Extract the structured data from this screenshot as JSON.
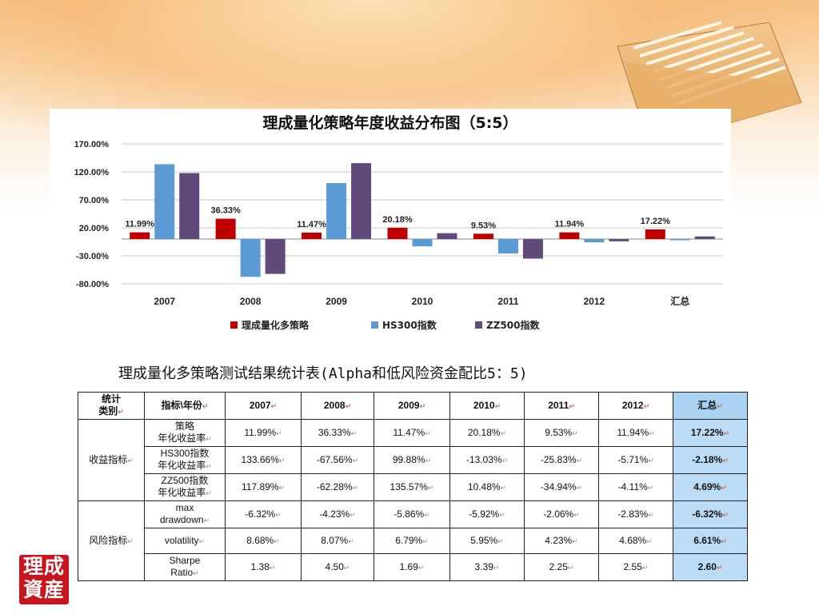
{
  "chart_data": {
    "type": "bar",
    "title": "理成量化策略年度收益分布图（5:5）",
    "categories": [
      "2007",
      "2008",
      "2009",
      "2010",
      "2011",
      "2012",
      "汇总"
    ],
    "series": [
      {
        "name": "理成量化多策略",
        "color": "#c00000",
        "values": [
          11.99,
          36.33,
          11.47,
          20.18,
          9.53,
          11.94,
          17.22
        ],
        "labels": [
          "11.99%",
          "36.33%",
          "11.47%",
          "20.18%",
          "9.53%",
          "11.94%",
          "17.22%"
        ]
      },
      {
        "name": "HS300指数",
        "color": "#5b9bd5",
        "values": [
          133.66,
          -67.56,
          99.88,
          -13.03,
          -25.83,
          -5.71,
          -2.18
        ]
      },
      {
        "name": "ZZ500指数",
        "color": "#604a7b",
        "values": [
          117.89,
          -62.28,
          135.57,
          10.48,
          -34.94,
          -4.11,
          4.69
        ]
      }
    ],
    "yticks": [
      "170.00%",
      "120.00%",
      "70.00%",
      "20.00%",
      "-30.00%",
      "-80.00%"
    ],
    "ytick_values": [
      170,
      120,
      70,
      20,
      -30,
      -80
    ],
    "ylim": [
      -80,
      170
    ],
    "grid": true,
    "legend_position": "bottom"
  },
  "table": {
    "caption": "理成量化多策略测试结果统计表(Alpha和低风险资金配比5：5)",
    "header": [
      "统计类别",
      "指标\\年份",
      "2007",
      "2008",
      "2009",
      "2010",
      "2011",
      "2012",
      "汇总"
    ],
    "groups": [
      {
        "category": "收益指标",
        "rows": [
          {
            "label": [
              "策略",
              "年化收益率"
            ],
            "values": [
              "11.99%",
              "36.33%",
              "11.47%",
              "20.18%",
              "9.53%",
              "11.94%"
            ],
            "total": "17.22%"
          },
          {
            "label": [
              "HS300指数",
              "年化收益率"
            ],
            "values": [
              "133.66%",
              "-67.56%",
              "99.88%",
              "-13.03%",
              "-25.83%",
              "-5.71%"
            ],
            "total": "-2.18%"
          },
          {
            "label": [
              "ZZ500指数",
              "年化收益率"
            ],
            "values": [
              "117.89%",
              "-62.28%",
              "135.57%",
              "10.48%",
              "-34.94%",
              "-4.11%"
            ],
            "total": "4.69%"
          }
        ]
      },
      {
        "category": "风险指标",
        "rows": [
          {
            "label": [
              "max",
              "drawdown"
            ],
            "values": [
              "-6.32%",
              "-4.23%",
              "-5.86%",
              "-5.92%",
              "-2.06%",
              "-2.83%"
            ],
            "total": "-6.32%"
          },
          {
            "label": [
              "volatility"
            ],
            "values": [
              "8.68%",
              "8.07%",
              "6.79%",
              "5.95%",
              "4.23%",
              "4.68%"
            ],
            "total": "6.61%"
          },
          {
            "label": [
              "Sharpe",
              "Ratio"
            ],
            "values": [
              "1.38",
              "4.50",
              "1.69",
              "3.39",
              "2.25",
              "2.55"
            ],
            "total": "2.60"
          }
        ]
      }
    ]
  },
  "logo": {
    "line1": "理成",
    "line2": "資産"
  },
  "icons": {
    "folder": "accordion-folder-icon"
  }
}
